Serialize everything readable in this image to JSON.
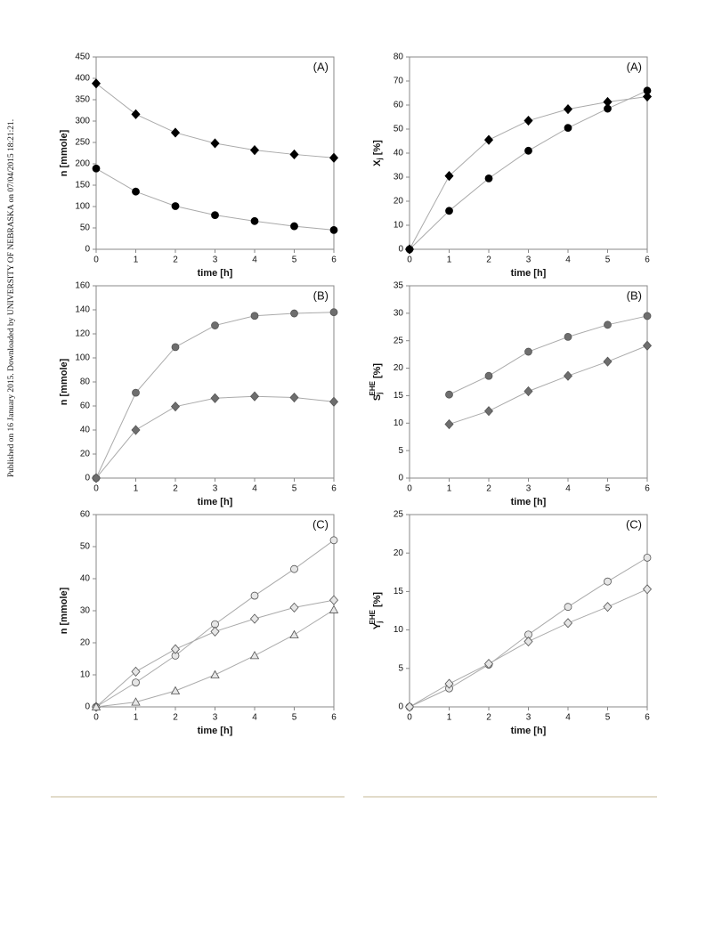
{
  "side_note": "Published on 16 January 2015. Downloaded by UNIVERSITY OF NEBRASKA on 07/04/2015 18:21:21.",
  "chart_data": [
    {
      "type": "line",
      "panel": "(A)",
      "xlabel": "time [h]",
      "ylabel": "n [mmole]",
      "x": [
        0,
        1,
        2,
        3,
        4,
        5,
        6
      ],
      "xlim": [
        0,
        6
      ],
      "xticks": [
        0,
        1,
        2,
        3,
        4,
        5,
        6
      ],
      "ylim": [
        0,
        450
      ],
      "yticks": [
        0,
        50,
        100,
        150,
        200,
        250,
        300,
        350,
        400,
        450
      ],
      "series": [
        {
          "marker": "diamond",
          "color": "#000000",
          "line_color": "#aaaaaa",
          "values": [
            388,
            316,
            273,
            248,
            232,
            222,
            214
          ]
        },
        {
          "marker": "circle",
          "color": "#000000",
          "line_color": "#aaaaaa",
          "values": [
            189,
            135,
            101,
            80,
            66,
            54,
            45
          ]
        }
      ]
    },
    {
      "type": "line",
      "panel": "(A)",
      "xlabel": "time [h]",
      "ylabel": "X",
      "ylabel_sub": "j",
      "ylabel_unit": "[%]",
      "x": [
        0,
        1,
        2,
        3,
        4,
        5,
        6
      ],
      "xlim": [
        0,
        6
      ],
      "xticks": [
        0,
        1,
        2,
        3,
        4,
        5,
        6
      ],
      "ylim": [
        0,
        80
      ],
      "yticks": [
        0,
        10,
        20,
        30,
        40,
        50,
        60,
        70,
        80
      ],
      "series": [
        {
          "marker": "circle",
          "color": "#000000",
          "line_color": "#aaaaaa",
          "values": [
            0,
            16,
            29.5,
            41,
            50.5,
            58.5,
            66
          ]
        },
        {
          "marker": "diamond",
          "color": "#000000",
          "line_color": "#aaaaaa",
          "values": [
            0,
            30.5,
            45.5,
            53.5,
            58.3,
            61.3,
            63.5
          ]
        }
      ]
    },
    {
      "type": "line",
      "panel": "(B)",
      "xlabel": "time [h]",
      "ylabel": "n [mmole]",
      "x": [
        0,
        1,
        2,
        3,
        4,
        5,
        6
      ],
      "xlim": [
        0,
        6
      ],
      "xticks": [
        0,
        1,
        2,
        3,
        4,
        5,
        6
      ],
      "ylim": [
        0,
        160
      ],
      "yticks": [
        0,
        20,
        40,
        60,
        80,
        100,
        120,
        140,
        160
      ],
      "series": [
        {
          "marker": "circle",
          "color": "#6e6e6e",
          "line_color": "#aaaaaa",
          "values": [
            0,
            71,
            109,
            127,
            135,
            137,
            138
          ]
        },
        {
          "marker": "diamond",
          "color": "#6e6e6e",
          "line_color": "#aaaaaa",
          "values": [
            0,
            40,
            59.5,
            66.5,
            68,
            67,
            63.5
          ]
        }
      ]
    },
    {
      "type": "line",
      "panel": "(B)",
      "xlabel": "time [h]",
      "ylabel": "S",
      "ylabel_sub": "j",
      "ylabel_sup": "EHE",
      "ylabel_unit": "[%]",
      "x": [
        1,
        2,
        3,
        4,
        5,
        6
      ],
      "xlim": [
        0,
        6
      ],
      "xticks": [
        0,
        1,
        2,
        3,
        4,
        5,
        6
      ],
      "ylim": [
        0,
        35
      ],
      "yticks": [
        0,
        5,
        10,
        15,
        20,
        25,
        30,
        35
      ],
      "series": [
        {
          "marker": "circle",
          "color": "#6e6e6e",
          "line_color": "#aaaaaa",
          "values": [
            15.2,
            18.6,
            23,
            25.7,
            27.9,
            29.5
          ]
        },
        {
          "marker": "diamond",
          "color": "#6e6e6e",
          "line_color": "#aaaaaa",
          "values": [
            9.8,
            12.2,
            15.8,
            18.6,
            21.2,
            24.1
          ]
        }
      ]
    },
    {
      "type": "line",
      "panel": "(C)",
      "xlabel": "time [h]",
      "ylabel": "n [mmole]",
      "x": [
        0,
        1,
        2,
        3,
        4,
        5,
        6
      ],
      "xlim": [
        0,
        6
      ],
      "xticks": [
        0,
        1,
        2,
        3,
        4,
        5,
        6
      ],
      "ylim": [
        0,
        60
      ],
      "yticks": [
        0,
        10,
        20,
        30,
        40,
        50,
        60
      ],
      "series": [
        {
          "marker": "circle",
          "color": "#e6e6e6",
          "line_color": "#aaaaaa",
          "values": [
            0,
            7.6,
            16,
            25.8,
            34.7,
            43,
            52
          ]
        },
        {
          "marker": "diamond",
          "color": "#e6e6e6",
          "line_color": "#aaaaaa",
          "values": [
            0,
            11,
            18,
            23.5,
            27.5,
            31,
            33.3
          ]
        },
        {
          "marker": "triangle",
          "color": "#e6e6e6",
          "line_color": "#aaaaaa",
          "values": [
            0,
            1.5,
            5,
            10,
            16,
            22.5,
            30.3
          ]
        }
      ]
    },
    {
      "type": "line",
      "panel": "(C)",
      "xlabel": "time [h]",
      "ylabel": "Y",
      "ylabel_sub": "j",
      "ylabel_sup": "EHE",
      "ylabel_unit": "[%]",
      "x": [
        0,
        1,
        2,
        3,
        4,
        5,
        6
      ],
      "xlim": [
        0,
        6
      ],
      "xticks": [
        0,
        1,
        2,
        3,
        4,
        5,
        6
      ],
      "ylim": [
        0,
        25
      ],
      "yticks": [
        0,
        5,
        10,
        15,
        20,
        25
      ],
      "series": [
        {
          "marker": "circle",
          "color": "#e6e6e6",
          "line_color": "#aaaaaa",
          "values": [
            0,
            2.4,
            5.5,
            9.4,
            13,
            16.3,
            19.4
          ]
        },
        {
          "marker": "diamond",
          "color": "#e6e6e6",
          "line_color": "#aaaaaa",
          "values": [
            0,
            3,
            5.6,
            8.5,
            10.9,
            13,
            15.3
          ]
        }
      ]
    }
  ]
}
